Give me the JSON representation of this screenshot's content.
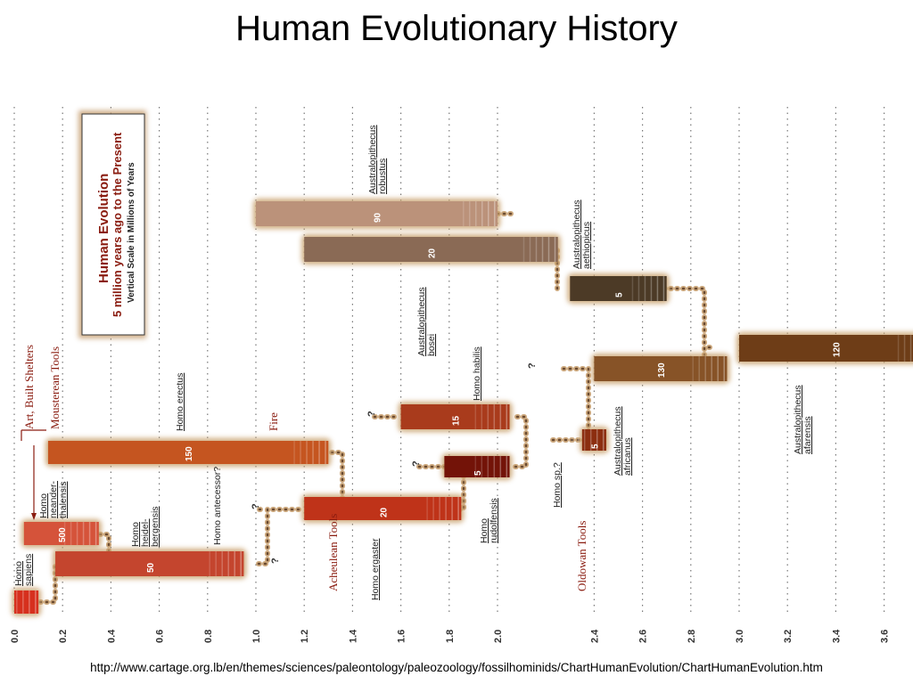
{
  "page": {
    "title": "Human Evolutionary History",
    "source_url": "http://www.cartage.org.lb/en/themes/sciences/paleontology/paleozoology/fossilhominids/ChartHumanEvolution/ChartHumanEvolution.htm"
  },
  "legend_box": {
    "line1": "Human Evolution",
    "line2": "5 million years ago to the Present",
    "line3": "Vertical Scale in Millions of Years"
  },
  "chart_data": {
    "type": "bar",
    "title": "",
    "xlabel": "",
    "ylabel": "",
    "xlim": [
      0,
      3.8
    ],
    "ticks": [
      0.0,
      0.2,
      0.4,
      0.6,
      0.8,
      1.0,
      1.2,
      1.4,
      1.6,
      1.8,
      2.0,
      2.4,
      2.6,
      2.8,
      3.0,
      3.2,
      3.4,
      3.6
    ],
    "tick_labels": [
      "0.0",
      "0.2",
      "0.4",
      "0.6",
      "0.8",
      "1.0",
      "1.2",
      "1.4",
      "1.6",
      "1.8",
      "2.0",
      "2.4",
      "2.6",
      "2.8",
      "3.0",
      "3.2",
      "3.4",
      "3.6"
    ],
    "species": [
      {
        "name": "Homo sapiens",
        "start": 0.0,
        "end": 0.1,
        "value": "",
        "color": "#d6301e"
      },
      {
        "name": "Homo heidel- bergensis",
        "start": 0.17,
        "end": 0.95,
        "value": "50",
        "color": "#c4452e"
      },
      {
        "name": "Homo neander- thalensis",
        "start": 0.04,
        "end": 0.35,
        "value": "500",
        "color": "#d5533a"
      },
      {
        "name": "Homo erectus",
        "start": 0.14,
        "end": 1.3,
        "value": "150",
        "color": "#c55520"
      },
      {
        "name": "Homo ergaster",
        "start": 1.2,
        "end": 1.85,
        "value": "20",
        "color": "#bf3319"
      },
      {
        "name": "Homo rudolfensis",
        "start": 1.78,
        "end": 2.05,
        "value": "5",
        "color": "#731308"
      },
      {
        "name": "Homo habilis",
        "start": 1.6,
        "end": 2.05,
        "value": "15",
        "color": "#a93b1c"
      },
      {
        "name": "Homo sp.?",
        "start": 2.35,
        "end": 2.45,
        "value": "5",
        "color": "#8c2e10"
      },
      {
        "name": "Australopithecus africanus",
        "start": 2.4,
        "end": 2.95,
        "value": "130",
        "color": "#875327"
      },
      {
        "name": "Australopithecus robustus",
        "start": 1.0,
        "end": 2.0,
        "value": "90",
        "color": "#bb927a"
      },
      {
        "name": "Australopithecus bosei",
        "start": 1.2,
        "end": 2.25,
        "value": "20",
        "color": "#8a6a55"
      },
      {
        "name": "Australopithecus aethiopicus",
        "start": 2.3,
        "end": 2.7,
        "value": "5",
        "color": "#4c3a26"
      },
      {
        "name": "Australopithecus afarensis",
        "start": 3.0,
        "end": 3.8,
        "value": "120",
        "color": "#6e3d17"
      }
    ],
    "annotations": {
      "culture_1": "Art, Built Shelters",
      "culture_2": "Mousterean Tools",
      "fire": "Fire",
      "acheulean": "Acheulean Tools",
      "oldowan": "Oldowan Tools",
      "homo_antecessor": "Homo antecessor?",
      "question_mark": "?"
    }
  }
}
